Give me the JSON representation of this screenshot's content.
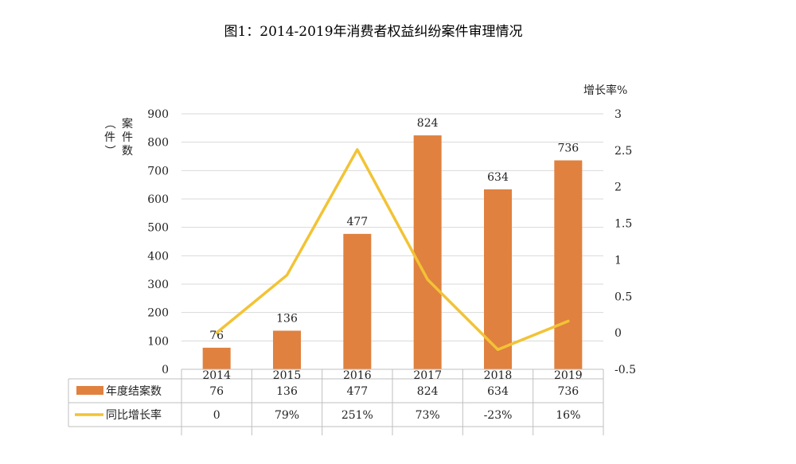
{
  "chart_data": {
    "type": "bar+line",
    "title": "图1：2014-2019年消费者权益纠纷案件审理情况",
    "categories": [
      "2014",
      "2015",
      "2016",
      "2017",
      "2018",
      "2019"
    ],
    "y_left": {
      "label": "（案件数件）",
      "label_chars": [
        "（",
        "案",
        "件",
        "数",
        "件",
        "）"
      ],
      "min": 0,
      "max": 900,
      "ticks": [
        "0",
        "100",
        "200",
        "300",
        "400",
        "500",
        "600",
        "700",
        "800",
        "900"
      ]
    },
    "y_right": {
      "label": "增长率%",
      "min": -0.5,
      "max": 3,
      "ticks": [
        "-0.5",
        "0",
        "0.5",
        "1",
        "1.5",
        "2",
        "2.5",
        "3"
      ]
    },
    "series": [
      {
        "name": "年度结案数",
        "type": "bar",
        "color": "#E0813F",
        "values": [
          76,
          136,
          477,
          824,
          634,
          736
        ],
        "labels": [
          "76",
          "136",
          "477",
          "824",
          "634",
          "736"
        ]
      },
      {
        "name": "同比增长率",
        "type": "line",
        "color": "#F2C335",
        "values": [
          0,
          0.79,
          2.51,
          0.73,
          -0.23,
          0.16
        ],
        "labels": [
          "0",
          "79%",
          "251%",
          "73%",
          "-23%",
          "16%"
        ]
      }
    ],
    "grid": true,
    "legend": "data-table"
  }
}
